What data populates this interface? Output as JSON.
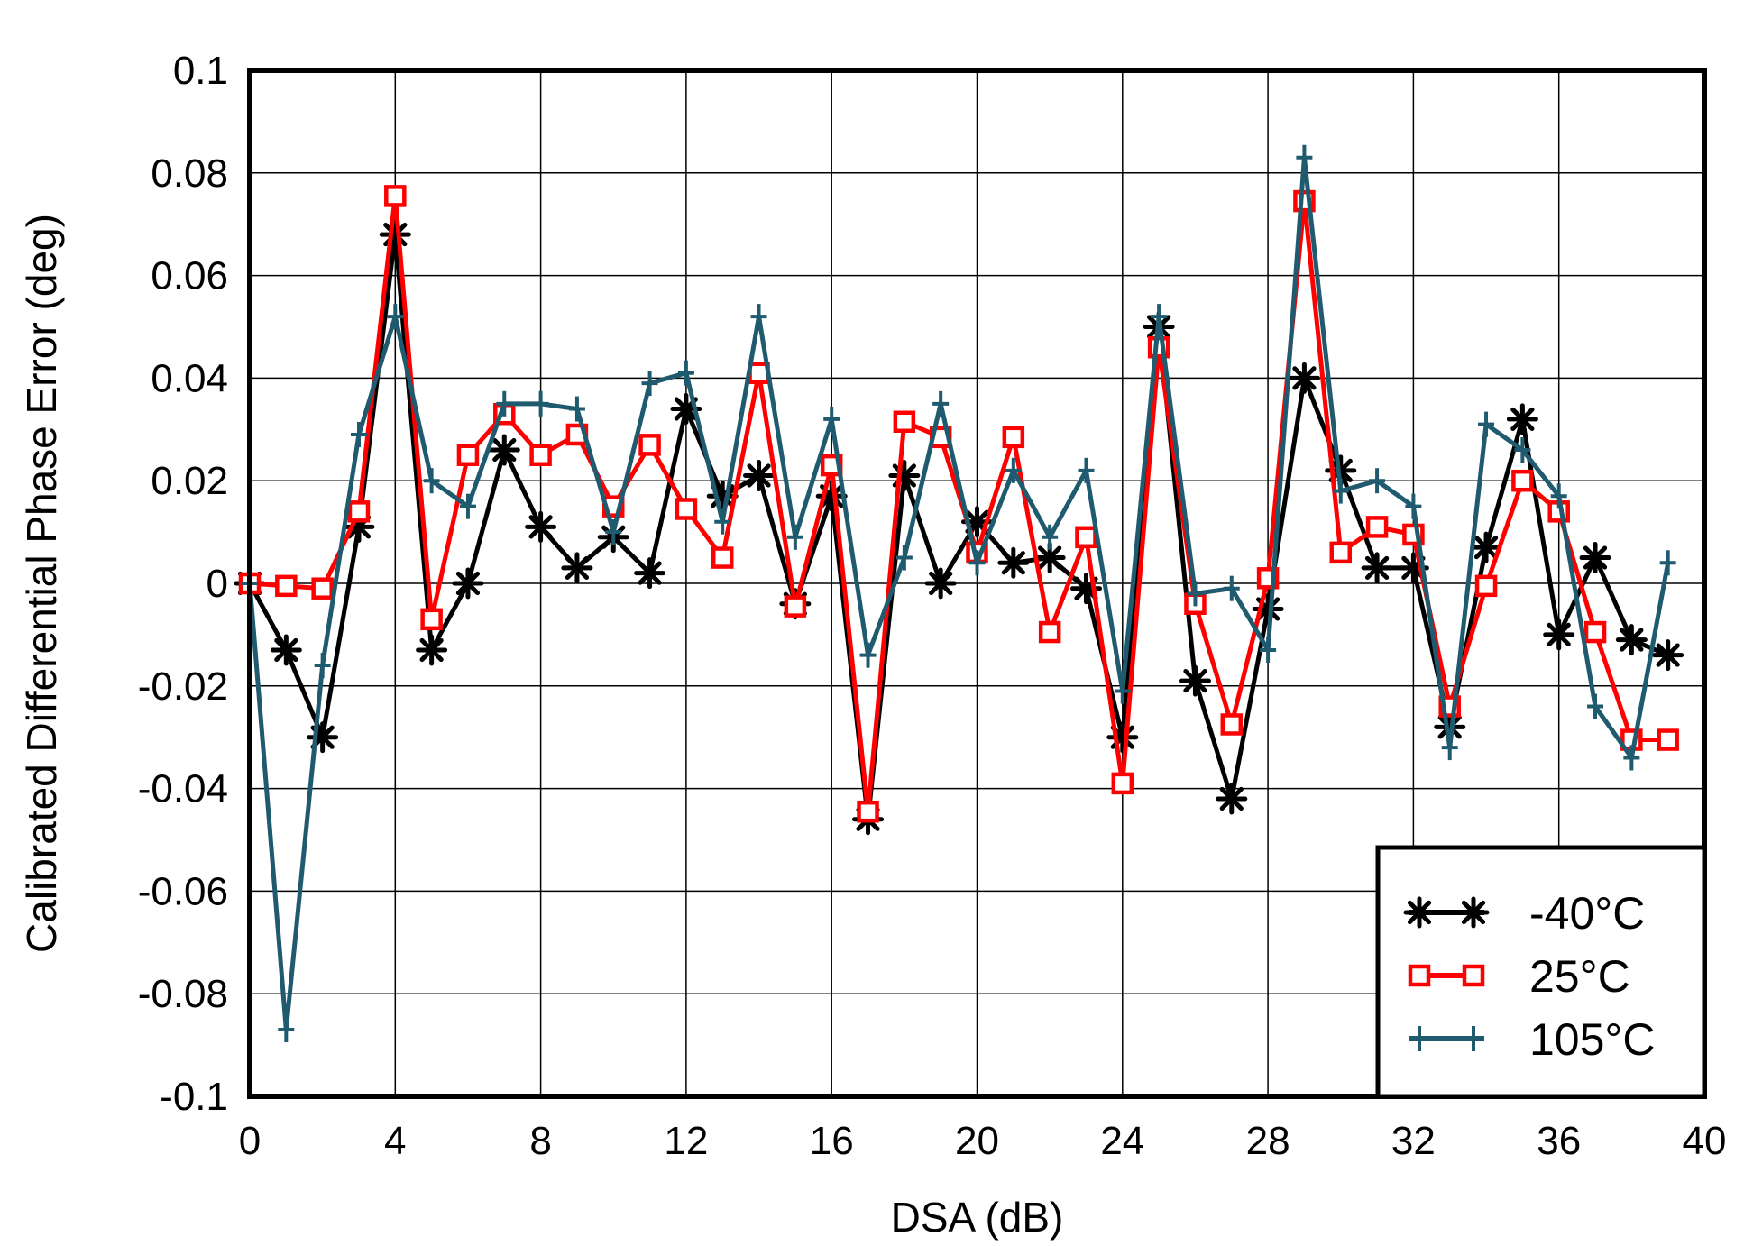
{
  "chart_data": {
    "type": "line",
    "title": "",
    "xlabel": "DSA (dB)",
    "ylabel": "Calibrated Differential Phase Error (deg)",
    "xlim": [
      0,
      40
    ],
    "ylim": [
      -0.1,
      0.1
    ],
    "x_ticks": [
      0,
      4,
      8,
      12,
      16,
      20,
      24,
      28,
      32,
      36,
      40
    ],
    "y_ticks": [
      0.1,
      0.08,
      0.06,
      0.04,
      0.02,
      0,
      -0.02,
      -0.04,
      -0.06,
      -0.08,
      -0.1
    ],
    "x_tick_labels": [
      "0",
      "4",
      "8",
      "12",
      "16",
      "20",
      "24",
      "28",
      "32",
      "36",
      "40"
    ],
    "y_tick_labels": [
      "0.1",
      "0.08",
      "0.06",
      "0.04",
      "0.02",
      "0",
      "-0.02",
      "-0.04",
      "-0.06",
      "-0.08",
      "-0.1"
    ],
    "grid": true,
    "legend_position": "bottom-right",
    "x": [
      0,
      1,
      2,
      3,
      4,
      5,
      6,
      7,
      8,
      9,
      10,
      11,
      12,
      13,
      14,
      15,
      16,
      17,
      18,
      19,
      20,
      21,
      22,
      23,
      24,
      25,
      26,
      27,
      28,
      29,
      30,
      31,
      32,
      33,
      34,
      35,
      36,
      37,
      38,
      39
    ],
    "series": [
      {
        "name": "-40°C",
        "color": "#000000",
        "marker": "asterisk",
        "values": [
          0,
          -0.013,
          -0.03,
          0.011,
          0.068,
          -0.013,
          0,
          0.026,
          0.011,
          0.003,
          0.009,
          0.002,
          0.034,
          0.017,
          0.021,
          -0.004,
          0.017,
          -0.046,
          0.021,
          0,
          0.012,
          0.004,
          0.005,
          -0.001,
          -0.03,
          0.05,
          -0.019,
          -0.042,
          -0.005,
          0.04,
          0.022,
          0.003,
          0.003,
          -0.028,
          0.007,
          0.032,
          -0.01,
          0.005,
          -0.011,
          -0.014
        ]
      },
      {
        "name": "25°C",
        "color": "#ff0000",
        "marker": "square",
        "values": [
          0,
          -0.0005,
          -0.001,
          0.014,
          0.0755,
          -0.007,
          0.025,
          0.033,
          0.025,
          0.029,
          0.015,
          0.027,
          0.0145,
          0.005,
          0.041,
          -0.0045,
          0.023,
          -0.0445,
          0.0315,
          0.0285,
          0.006,
          0.0285,
          -0.0095,
          0.009,
          -0.039,
          0.046,
          -0.004,
          -0.0275,
          0.001,
          0.0745,
          0.006,
          0.011,
          0.0095,
          -0.024,
          -0.0005,
          0.02,
          0.014,
          -0.0095,
          -0.0305,
          -0.0305
        ]
      },
      {
        "name": "105°C",
        "color": "#1f5a6e",
        "marker": "plus",
        "values": [
          0,
          -0.087,
          -0.016,
          0.029,
          0.052,
          0.02,
          0.015,
          0.035,
          0.035,
          0.034,
          0.01,
          0.039,
          0.041,
          0.012,
          0.052,
          0.009,
          0.032,
          -0.014,
          0.005,
          0.035,
          0.004,
          0.022,
          0.009,
          0.022,
          -0.021,
          0.052,
          -0.002,
          -0.001,
          -0.013,
          0.083,
          0.018,
          0.02,
          0.015,
          -0.032,
          0.031,
          0.026,
          0.017,
          -0.024,
          -0.034,
          0.004
        ]
      }
    ]
  }
}
